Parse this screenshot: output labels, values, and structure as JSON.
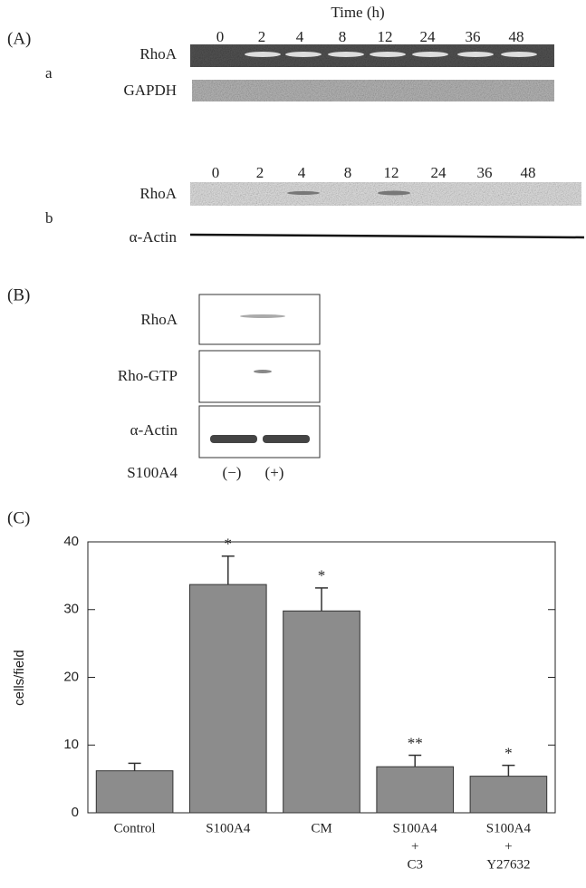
{
  "panel_a": {
    "label": "(A)",
    "time_title": "Time (h)",
    "row_a": {
      "label": "a",
      "times": [
        "0",
        "2",
        "4",
        "8",
        "12",
        "24",
        "36",
        "48"
      ],
      "blots": [
        "RhoA",
        "GAPDH"
      ]
    },
    "row_b": {
      "label": "b",
      "times": [
        "0",
        "2",
        "4",
        "8",
        "12",
        "24",
        "36",
        "48"
      ],
      "blots": [
        "RhoA",
        "α-Actin"
      ]
    }
  },
  "panel_b": {
    "label": "(B)",
    "blots": [
      "RhoA",
      "Rho-GTP",
      "α-Actin"
    ],
    "treatment": "S100A4",
    "lanes": [
      "(−)",
      "(+)"
    ]
  },
  "panel_c": {
    "label": "(C)"
  },
  "chart_data": {
    "type": "bar",
    "y_label": "cells/field",
    "categories": [
      [
        "Control"
      ],
      [
        "S100A4"
      ],
      [
        "CM"
      ],
      [
        "S100A4",
        "+",
        "C3"
      ],
      [
        "S100A4",
        "+",
        "Y27632"
      ]
    ],
    "values": [
      6.2,
      33.7,
      29.8,
      6.8,
      5.4
    ],
    "errors": [
      1.1,
      4.2,
      3.4,
      1.7,
      1.6
    ],
    "annotations": [
      null,
      "*",
      "*",
      "**",
      "*"
    ],
    "color": "#8c8c8c",
    "ylim": [
      0,
      40
    ],
    "yticks": [
      0,
      10,
      20,
      30,
      40
    ]
  }
}
